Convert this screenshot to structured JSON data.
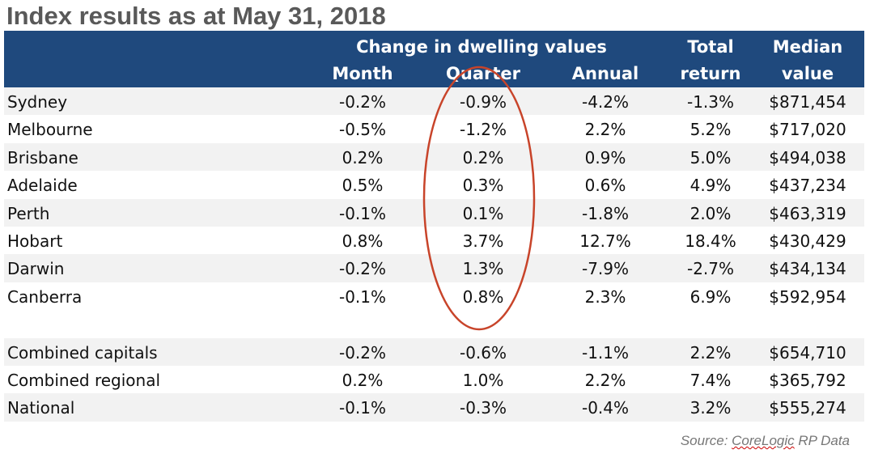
{
  "title": "Index results as at May 31, 2018",
  "header": {
    "group": "Change in dwelling values",
    "month": "Month",
    "quarter": "Quarter",
    "annual": "Annual",
    "total1": "Total",
    "total2": "return",
    "median1": "Median",
    "median2": "value"
  },
  "rows": [
    {
      "name": "Sydney",
      "month": "-0.2%",
      "quarter": "-0.9%",
      "annual": "-4.2%",
      "total": "-1.3%",
      "median": "$871,454"
    },
    {
      "name": "Melbourne",
      "month": "-0.5%",
      "quarter": "-1.2%",
      "annual": "2.2%",
      "total": "5.2%",
      "median": "$717,020"
    },
    {
      "name": "Brisbane",
      "month": "0.2%",
      "quarter": "0.2%",
      "annual": "0.9%",
      "total": "5.0%",
      "median": "$494,038"
    },
    {
      "name": "Adelaide",
      "month": "0.5%",
      "quarter": "0.3%",
      "annual": "0.6%",
      "total": "4.9%",
      "median": "$437,234"
    },
    {
      "name": "Perth",
      "month": "-0.1%",
      "quarter": "0.1%",
      "annual": "-1.8%",
      "total": "2.0%",
      "median": "$463,319"
    },
    {
      "name": "Hobart",
      "month": "0.8%",
      "quarter": "3.7%",
      "annual": "12.7%",
      "total": "18.4%",
      "median": "$430,429"
    },
    {
      "name": "Darwin",
      "month": "-0.2%",
      "quarter": "1.3%",
      "annual": "-7.9%",
      "total": "-2.7%",
      "median": "$434,134"
    },
    {
      "name": "Canberra",
      "month": "-0.1%",
      "quarter": "0.8%",
      "annual": "2.3%",
      "total": "6.9%",
      "median": "$592,954"
    },
    {
      "name": "Combined capitals",
      "month": "-0.2%",
      "quarter": "-0.6%",
      "annual": "-1.1%",
      "total": "2.2%",
      "median": "$654,710"
    },
    {
      "name": "Combined regional",
      "month": "0.2%",
      "quarter": "1.0%",
      "annual": "2.2%",
      "total": "7.4%",
      "median": "$365,792"
    },
    {
      "name": "National",
      "month": "-0.1%",
      "quarter": "-0.3%",
      "annual": "-0.4%",
      "total": "3.2%",
      "median": "$555,274"
    }
  ],
  "source": {
    "prefix": "Source: ",
    "brand": "CoreLogic",
    "suffix": " RP Data"
  },
  "colors": {
    "header": "#1f497d",
    "stripe": "#f2f2f2",
    "annotation": "#c8442a"
  }
}
